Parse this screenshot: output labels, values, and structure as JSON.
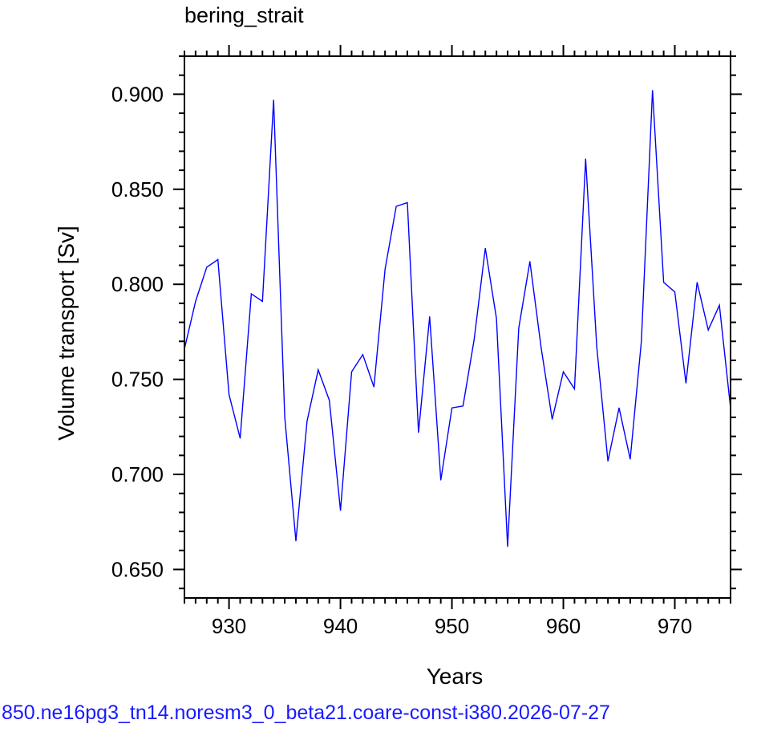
{
  "chart_data": {
    "type": "line",
    "title": "bering_strait",
    "xlabel": "Years",
    "ylabel": "Volume transport [Sv]",
    "xlim": [
      926,
      975
    ],
    "ylim": [
      0.635,
      0.92
    ],
    "x_ticks": [
      930,
      940,
      950,
      960,
      970
    ],
    "x_tick_labels": [
      "930",
      "940",
      "950",
      "960",
      "970"
    ],
    "y_ticks": [
      0.65,
      0.7,
      0.75,
      0.8,
      0.85,
      0.9
    ],
    "y_tick_labels": [
      "0.650",
      "0.700",
      "0.750",
      "0.800",
      "0.850",
      "0.900"
    ],
    "grid": false,
    "series": [
      {
        "color": "#0000ff",
        "x": [
          926,
          927,
          928,
          929,
          930,
          931,
          932,
          933,
          934,
          935,
          936,
          937,
          938,
          939,
          940,
          941,
          942,
          943,
          944,
          945,
          946,
          947,
          948,
          949,
          950,
          951,
          952,
          953,
          954,
          955,
          956,
          957,
          958,
          959,
          960,
          961,
          962,
          963,
          964,
          965,
          966,
          967,
          968,
          969,
          970,
          971,
          972,
          973,
          974,
          975
        ],
        "values": [
          0.766,
          0.791,
          0.809,
          0.813,
          0.742,
          0.719,
          0.795,
          0.791,
          0.897,
          0.73,
          0.665,
          0.728,
          0.755,
          0.739,
          0.681,
          0.754,
          0.763,
          0.746,
          0.808,
          0.841,
          0.843,
          0.722,
          0.783,
          0.697,
          0.735,
          0.736,
          0.771,
          0.819,
          0.782,
          0.662,
          0.777,
          0.812,
          0.767,
          0.729,
          0.754,
          0.745,
          0.866,
          0.767,
          0.707,
          0.735,
          0.708,
          0.77,
          0.902,
          0.801,
          0.796,
          0.748,
          0.801,
          0.776,
          0.789,
          0.735
        ]
      }
    ]
  },
  "caption": "850.ne16pg3_tn14.noresm3_0_beta21.coare-const-i380.2026-07-27"
}
